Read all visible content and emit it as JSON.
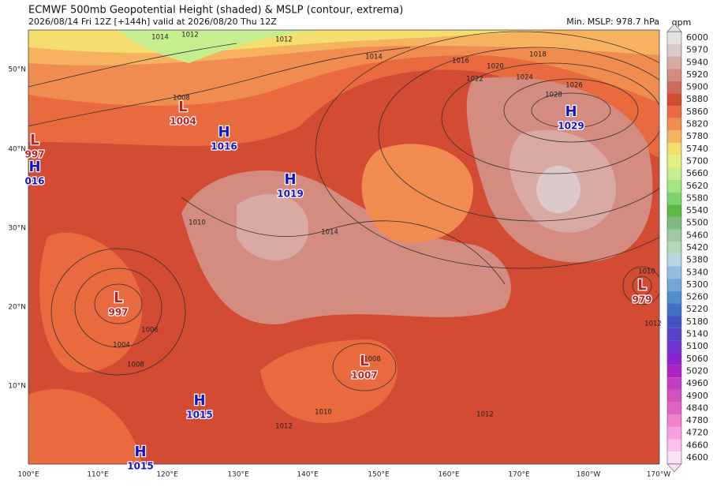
{
  "header": {
    "title": "ECMWF 500mb Geopotential Height (shaded) & MSLP (contour, extrema)",
    "subtitle": "2026/08/14 Fri 12Z [+144h] valid at 2026/08/20 Thu 12Z",
    "min_mslp": "Min. MSLP: 978.7 hPa"
  },
  "colorbar": {
    "unit": "gpm",
    "levels": [
      {
        "label": "6000",
        "color": "#e2e2e2"
      },
      {
        "label": "5970",
        "color": "#dccaca"
      },
      {
        "label": "5940",
        "color": "#d9aaa3"
      },
      {
        "label": "5920",
        "color": "#d48b80"
      },
      {
        "label": "5900",
        "color": "#cf6a5a"
      },
      {
        "label": "5880",
        "color": "#d24b32"
      },
      {
        "label": "5860",
        "color": "#e86a3e"
      },
      {
        "label": "5820",
        "color": "#f08c50"
      },
      {
        "label": "5780",
        "color": "#f6b25e"
      },
      {
        "label": "5740",
        "color": "#f4de6e"
      },
      {
        "label": "5700",
        "color": "#e4f07e"
      },
      {
        "label": "5660",
        "color": "#c6ee8e"
      },
      {
        "label": "5620",
        "color": "#a2e67e"
      },
      {
        "label": "5580",
        "color": "#7ed46a"
      },
      {
        "label": "5540",
        "color": "#5cba42"
      },
      {
        "label": "5500",
        "color": "#7eba80"
      },
      {
        "label": "5460",
        "color": "#a0c8a2"
      },
      {
        "label": "5420",
        "color": "#b4d8b4"
      },
      {
        "label": "5380",
        "color": "#b8d6e8"
      },
      {
        "label": "5340",
        "color": "#92bfe0"
      },
      {
        "label": "5300",
        "color": "#70a6d8"
      },
      {
        "label": "5260",
        "color": "#508ed0"
      },
      {
        "label": "5220",
        "color": "#4070c8"
      },
      {
        "label": "5180",
        "color": "#4452c2"
      },
      {
        "label": "5140",
        "color": "#5442c8"
      },
      {
        "label": "5100",
        "color": "#7032d0"
      },
      {
        "label": "5060",
        "color": "#8e22d0"
      },
      {
        "label": "5020",
        "color": "#ae22c8"
      },
      {
        "label": "4960",
        "color": "#c23ec2"
      },
      {
        "label": "4900",
        "color": "#d250c0"
      },
      {
        "label": "4840",
        "color": "#e262c4"
      },
      {
        "label": "4780",
        "color": "#f080d0"
      },
      {
        "label": "4720",
        "color": "#f8a0de"
      },
      {
        "label": "4660",
        "color": "#fcc0ea"
      },
      {
        "label": "4600",
        "color": "#fde0f4"
      }
    ]
  },
  "axes": {
    "lat_labels": [
      "50°N",
      "40°N",
      "30°N",
      "20°N",
      "10°N"
    ],
    "lon_labels": [
      "100°E",
      "110°E",
      "120°E",
      "130°E",
      "140°E",
      "150°E",
      "160°E",
      "170°E",
      "180°W",
      "170°W"
    ]
  },
  "centers": [
    {
      "type": "H",
      "value": "1029"
    },
    {
      "type": "L",
      "value": "1004"
    },
    {
      "type": "H",
      "value": "1016"
    },
    {
      "type": "H",
      "value": "1019"
    },
    {
      "type": "L",
      "value": "997"
    },
    {
      "type": "H",
      "value": "016"
    },
    {
      "type": "L",
      "value": "997"
    },
    {
      "type": "L",
      "value": "979"
    },
    {
      "type": "L",
      "value": "1007"
    },
    {
      "type": "H",
      "value": "1015"
    },
    {
      "type": "H",
      "value": "1015"
    }
  ],
  "contour_labels": [
    "1014",
    "1012",
    "1012",
    "1008",
    "1014",
    "1016",
    "1020",
    "1018",
    "1022",
    "1024",
    "1026",
    "1028",
    "1010",
    "1014",
    "1004",
    "1006",
    "1008",
    "1010",
    "1012",
    "1012",
    "1012",
    "1010",
    "1008"
  ]
}
